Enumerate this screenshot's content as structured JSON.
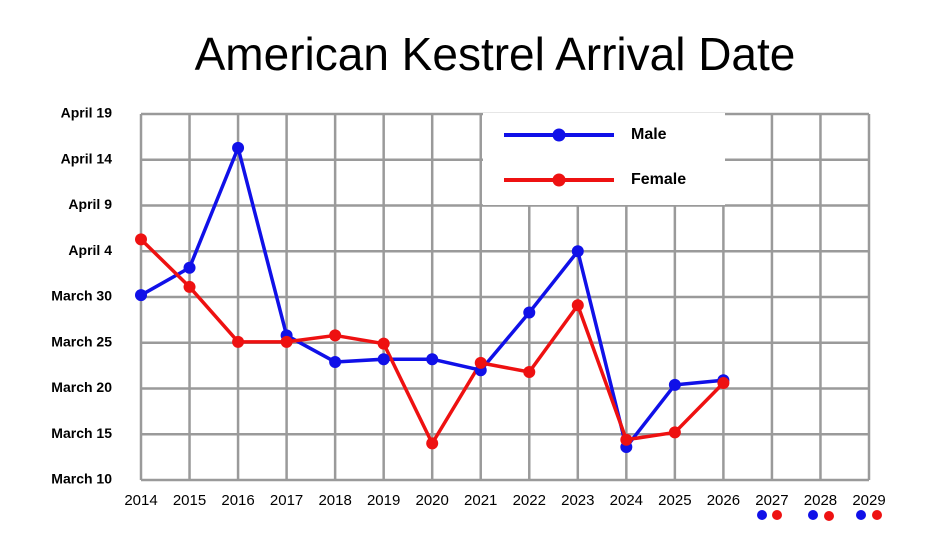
{
  "chart_data": {
    "type": "line",
    "title": "American Kestrel Arrival Date",
    "x": [
      2014,
      2015,
      2016,
      2017,
      2018,
      2019,
      2020,
      2021,
      2022,
      2023,
      2024,
      2025,
      2026,
      2027,
      2028,
      2029
    ],
    "series": [
      {
        "name": "Male",
        "color": "#1010e8",
        "values": [
          89.2,
          92.2,
          105.3,
          84.8,
          81.9,
          82.2,
          82.2,
          81.0,
          87.3,
          94.0,
          72.6,
          79.4,
          79.9,
          null,
          null,
          null
        ]
      },
      {
        "name": "Female",
        "color": "#ee1111",
        "values": [
          95.3,
          90.1,
          84.1,
          84.1,
          84.8,
          83.9,
          73.0,
          81.8,
          80.8,
          88.1,
          73.4,
          74.2,
          79.6,
          null,
          null,
          null
        ]
      }
    ],
    "xlim": [
      2014,
      2029
    ],
    "xticks": [
      2014,
      2015,
      2016,
      2017,
      2018,
      2019,
      2020,
      2021,
      2022,
      2023,
      2024,
      2025,
      2026,
      2027,
      2028,
      2029
    ],
    "ylim": [
      69,
      109
    ],
    "yticks": [
      {
        "value": 69,
        "label": "March 10"
      },
      {
        "value": 74,
        "label": "March 15"
      },
      {
        "value": 79,
        "label": "March 20"
      },
      {
        "value": 84,
        "label": "March 25"
      },
      {
        "value": 89,
        "label": "March 30"
      },
      {
        "value": 94,
        "label": "April 4"
      },
      {
        "value": 99,
        "label": "April 9"
      },
      {
        "value": 104,
        "label": "April 14"
      },
      {
        "value": 109,
        "label": "April 19"
      }
    ],
    "grid": true,
    "legend": "top"
  }
}
